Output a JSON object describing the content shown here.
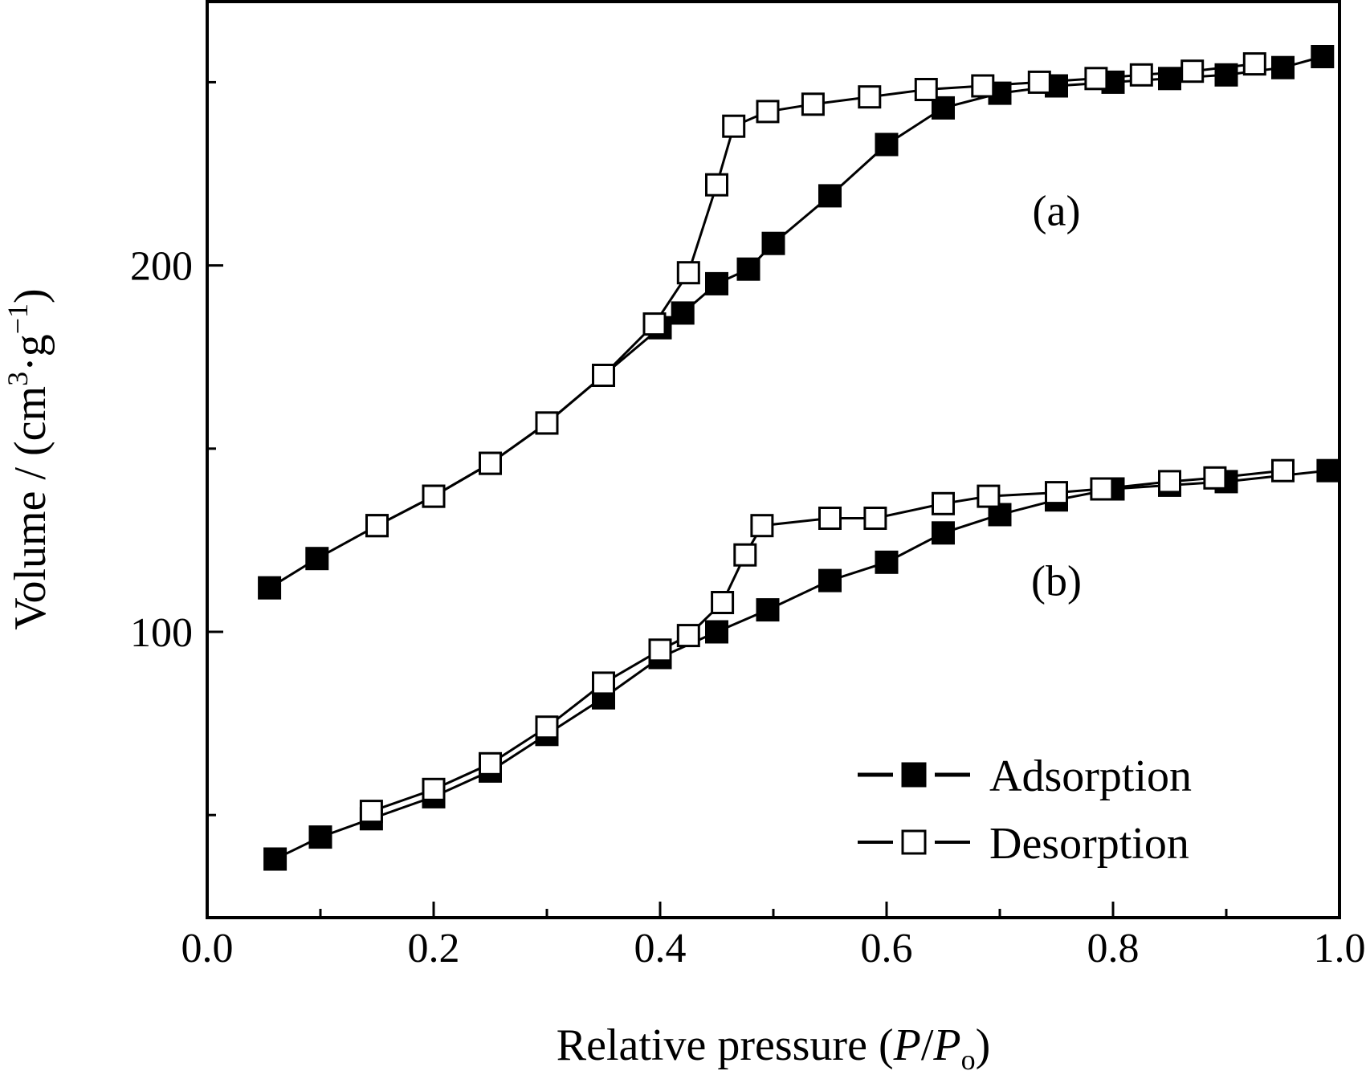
{
  "chart_data": {
    "type": "line",
    "xlabel": {
      "prefix": "Relative pressure (",
      "var1": "P",
      "slash": "/",
      "var2": "P",
      "sub": "o",
      "suffix": ")"
    },
    "ylabel": {
      "prefix": "Volume / (cm",
      "sup1": "3",
      "mid": "·g",
      "sup2": "−1",
      "suffix": ")"
    },
    "xlim": [
      0.0,
      1.0
    ],
    "ylim": [
      22,
      272
    ],
    "x_ticks": [
      "0.0",
      "0.2",
      "0.4",
      "0.6",
      "0.8",
      "1.0"
    ],
    "x_tick_values": [
      0.0,
      0.2,
      0.4,
      0.6,
      0.8,
      1.0
    ],
    "x_minor_ticks": [
      0.1,
      0.3,
      0.5,
      0.7,
      0.9
    ],
    "y_ticks": [
      "100",
      "200"
    ],
    "y_tick_values": [
      100,
      200
    ],
    "y_minor_ticks": [
      50,
      150,
      250
    ],
    "annotations": [
      {
        "text": "(a)",
        "x": 0.75,
        "y": 211
      },
      {
        "text": "(b)",
        "x": 0.75,
        "y": 110
      }
    ],
    "legend": {
      "position": "bottom-right",
      "items": [
        {
          "label": "Adsorption",
          "marker": "filled-square"
        },
        {
          "label": "Desorption",
          "marker": "open-square"
        }
      ]
    },
    "series": [
      {
        "name": "(a) Adsorption",
        "marker": "filled-square",
        "x": [
          0.055,
          0.097,
          0.15,
          0.2,
          0.25,
          0.3,
          0.35,
          0.4,
          0.42,
          0.45,
          0.478,
          0.5,
          0.55,
          0.6,
          0.65,
          0.7,
          0.75,
          0.8,
          0.85,
          0.9,
          0.95,
          0.985
        ],
        "y": [
          112,
          120,
          129,
          137,
          146,
          157,
          170,
          183,
          187,
          195,
          199,
          206,
          219,
          233,
          243,
          247,
          249,
          250,
          251,
          252,
          254,
          257
        ]
      },
      {
        "name": "(a) Desorption",
        "marker": "open-square",
        "x": [
          0.15,
          0.2,
          0.25,
          0.3,
          0.35,
          0.395,
          0.425,
          0.45,
          0.465,
          0.495,
          0.535,
          0.585,
          0.635,
          0.685,
          0.735,
          0.785,
          0.825,
          0.87,
          0.925
        ],
        "y": [
          129,
          137,
          146,
          157,
          170,
          184,
          198,
          222,
          238,
          242,
          244,
          246,
          248,
          249,
          250,
          251,
          252,
          253,
          255
        ]
      },
      {
        "name": "(b) Adsorption",
        "marker": "filled-square",
        "x": [
          0.06,
          0.1,
          0.145,
          0.2,
          0.25,
          0.3,
          0.35,
          0.4,
          0.45,
          0.495,
          0.55,
          0.6,
          0.65,
          0.7,
          0.75,
          0.8,
          0.85,
          0.9,
          0.99
        ],
        "y": [
          38,
          44,
          49,
          55,
          62,
          72,
          82,
          93,
          100,
          106,
          114,
          119,
          127,
          132,
          136,
          139,
          140,
          141,
          144
        ]
      },
      {
        "name": "(b) Desorption",
        "marker": "open-square",
        "x": [
          0.145,
          0.2,
          0.25,
          0.3,
          0.35,
          0.4,
          0.425,
          0.455,
          0.475,
          0.49,
          0.55,
          0.59,
          0.65,
          0.69,
          0.75,
          0.79,
          0.85,
          0.89,
          0.95
        ],
        "y": [
          51,
          57,
          64,
          74,
          86,
          95,
          99,
          108,
          121,
          129,
          131,
          131,
          135,
          137,
          138,
          139,
          141,
          142,
          144
        ]
      }
    ]
  }
}
